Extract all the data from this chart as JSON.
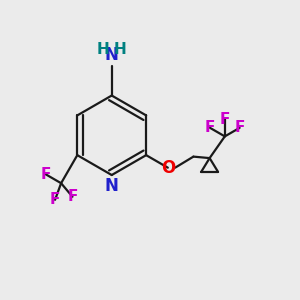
{
  "background_color": "#ebebeb",
  "bond_color": "#1a1a1a",
  "nitrogen_color": "#2020cc",
  "oxygen_color": "#ee0000",
  "fluorine_color": "#cc00cc",
  "nh_color": "#008080",
  "figsize": [
    3.0,
    3.0
  ],
  "dpi": 100,
  "xlim": [
    0,
    10
  ],
  "ylim": [
    0,
    10
  ]
}
